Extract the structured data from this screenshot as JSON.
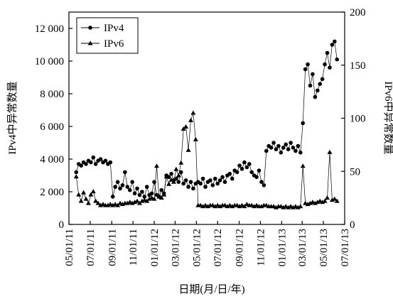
{
  "chart_data": {
    "type": "line",
    "xlabel": "日期(月/日/年)",
    "ylabel": "IPv4中异常数量",
    "y2label": "IPv6中异常数量",
    "legend": "upper left",
    "xlim": [
      "2011-05-01",
      "2013-07-01"
    ],
    "xticks": [
      {
        "value": "2011-05-01",
        "label": "05/01/11"
      },
      {
        "value": "2011-07-01",
        "label": "07/01/11"
      },
      {
        "value": "2011-09-01",
        "label": "09/01/11"
      },
      {
        "value": "2011-11-01",
        "label": "11/01/11"
      },
      {
        "value": "2012-01-01",
        "label": "01/01/12"
      },
      {
        "value": "2012-03-01",
        "label": "03/01/12"
      },
      {
        "value": "2012-05-01",
        "label": "05/01/12"
      },
      {
        "value": "2012-07-01",
        "label": "07/01/12"
      },
      {
        "value": "2012-09-01",
        "label": "09/01/12"
      },
      {
        "value": "2012-11-01",
        "label": "11/01/12"
      },
      {
        "value": "2013-01-01",
        "label": "01/01/13"
      },
      {
        "value": "2013-03-01",
        "label": "03/01/13"
      },
      {
        "value": "2013-05-01",
        "label": "05/01/13"
      },
      {
        "value": "2013-07-01",
        "label": "07/01/13"
      }
    ],
    "ylim": [
      0,
      13000
    ],
    "yticks": [
      0,
      {
        "value": 2000,
        "label": "2 000"
      },
      {
        "value": 4000,
        "label": "4 000"
      },
      {
        "value": 6000,
        "label": "6 000"
      },
      {
        "value": 8000,
        "label": "8 000"
      },
      {
        "value": 10000,
        "label": "10 000"
      },
      {
        "value": 12000,
        "label": "12 000"
      }
    ],
    "y2lim": [
      0,
      200
    ],
    "y2ticks": [
      0,
      50,
      100,
      150,
      200
    ],
    "x": [
      "2011-05-22",
      "2011-05-29",
      "2011-06-05",
      "2011-06-12",
      "2011-06-19",
      "2011-06-26",
      "2011-07-03",
      "2011-07-10",
      "2011-07-17",
      "2011-07-24",
      "2011-07-31",
      "2011-08-07",
      "2011-08-14",
      "2011-08-21",
      "2011-08-28",
      "2011-09-04",
      "2011-09-11",
      "2011-09-18",
      "2011-09-25",
      "2011-10-02",
      "2011-10-09",
      "2011-10-16",
      "2011-10-23",
      "2011-10-30",
      "2011-11-06",
      "2011-11-13",
      "2011-11-20",
      "2011-11-27",
      "2011-12-04",
      "2011-12-11",
      "2011-12-18",
      "2011-12-25",
      "2012-01-01",
      "2012-01-08",
      "2012-01-15",
      "2012-01-22",
      "2012-01-29",
      "2012-02-05",
      "2012-02-12",
      "2012-02-19",
      "2012-02-26",
      "2012-03-04",
      "2012-03-11",
      "2012-03-18",
      "2012-03-25",
      "2012-04-01",
      "2012-04-08",
      "2012-04-15",
      "2012-04-22",
      "2012-04-29",
      "2012-05-06",
      "2012-05-13",
      "2012-05-20",
      "2012-05-27",
      "2012-06-03",
      "2012-06-10",
      "2012-06-17",
      "2012-06-24",
      "2012-07-01",
      "2012-07-08",
      "2012-07-15",
      "2012-07-22",
      "2012-07-29",
      "2012-08-05",
      "2012-08-12",
      "2012-08-19",
      "2012-08-26",
      "2012-09-02",
      "2012-09-09",
      "2012-09-16",
      "2012-09-23",
      "2012-09-30",
      "2012-10-07",
      "2012-10-14",
      "2012-10-21",
      "2012-10-28",
      "2012-11-04",
      "2012-11-11",
      "2012-11-18",
      "2012-11-25",
      "2012-12-02",
      "2012-12-09",
      "2012-12-16",
      "2012-12-23",
      "2012-12-30",
      "2013-01-06",
      "2013-01-13",
      "2013-01-20",
      "2013-01-27",
      "2013-02-03",
      "2013-02-10",
      "2013-02-17",
      "2013-02-24",
      "2013-03-03",
      "2013-03-10",
      "2013-03-17",
      "2013-03-24",
      "2013-03-31",
      "2013-04-07",
      "2013-04-14",
      "2013-04-21",
      "2013-04-28",
      "2013-05-05",
      "2013-05-12",
      "2013-05-19",
      "2013-05-26",
      "2013-06-02",
      "2013-06-09"
    ],
    "series": [
      {
        "name": "IPv4",
        "color": "#000000",
        "marker": "circle",
        "values": [
          3200,
          3700,
          3600,
          3800,
          3700,
          3900,
          3800,
          4100,
          3700,
          3900,
          4000,
          3800,
          3900,
          3700,
          3800,
          1700,
          2300,
          2600,
          2200,
          2400,
          3200,
          2300,
          2100,
          2600,
          1900,
          2200,
          1800,
          2000,
          1700,
          2300,
          1800,
          1900,
          2600,
          1800,
          1700,
          2100,
          1900,
          3000,
          2900,
          3100,
          2700,
          2800,
          2600,
          3200,
          2500,
          2700,
          2300,
          2600,
          2200,
          2500,
          2600,
          2500,
          2800,
          2300,
          2600,
          2700,
          2400,
          2800,
          2500,
          2700,
          2900,
          2600,
          3000,
          3100,
          2800,
          3300,
          3200,
          3600,
          3400,
          3800,
          3500,
          3700,
          3200,
          3000,
          2900,
          3300,
          2600,
          2400,
          4500,
          4800,
          4700,
          5000,
          4600,
          4800,
          4400,
          4700,
          4900,
          4600,
          5000,
          4700,
          4500,
          4800,
          4400,
          6200,
          9500,
          9800,
          8500,
          9200,
          7800,
          8200,
          8600,
          8900,
          9800,
          10500,
          9600,
          11000,
          11200,
          10100
        ]
      },
      {
        "name": "IPv6",
        "color": "#000000",
        "marker": "triangle",
        "axis": "y2",
        "values": [
          45,
          28,
          22,
          30,
          24,
          20,
          28,
          31,
          22,
          20,
          18,
          19,
          18,
          18,
          19,
          18,
          19,
          18,
          20,
          19,
          20,
          20,
          21,
          20,
          21,
          22,
          20,
          22,
          23,
          22,
          24,
          25,
          24,
          55,
          26,
          25,
          28,
          45,
          38,
          42,
          40,
          52,
          46,
          58,
          90,
          92,
          70,
          98,
          105,
          80,
          18,
          18,
          17,
          18,
          17,
          18,
          18,
          17,
          18,
          17,
          18,
          18,
          17,
          18,
          17,
          18,
          18,
          17,
          18,
          17,
          19,
          18,
          18,
          17,
          18,
          17,
          17,
          18,
          18,
          17,
          17,
          17,
          16,
          17,
          17,
          16,
          17,
          16,
          17,
          16,
          17,
          16,
          17,
          55,
          20,
          19,
          20,
          21,
          20,
          21,
          22,
          21,
          22,
          25,
          68,
          23,
          24,
          22
        ]
      }
    ]
  }
}
